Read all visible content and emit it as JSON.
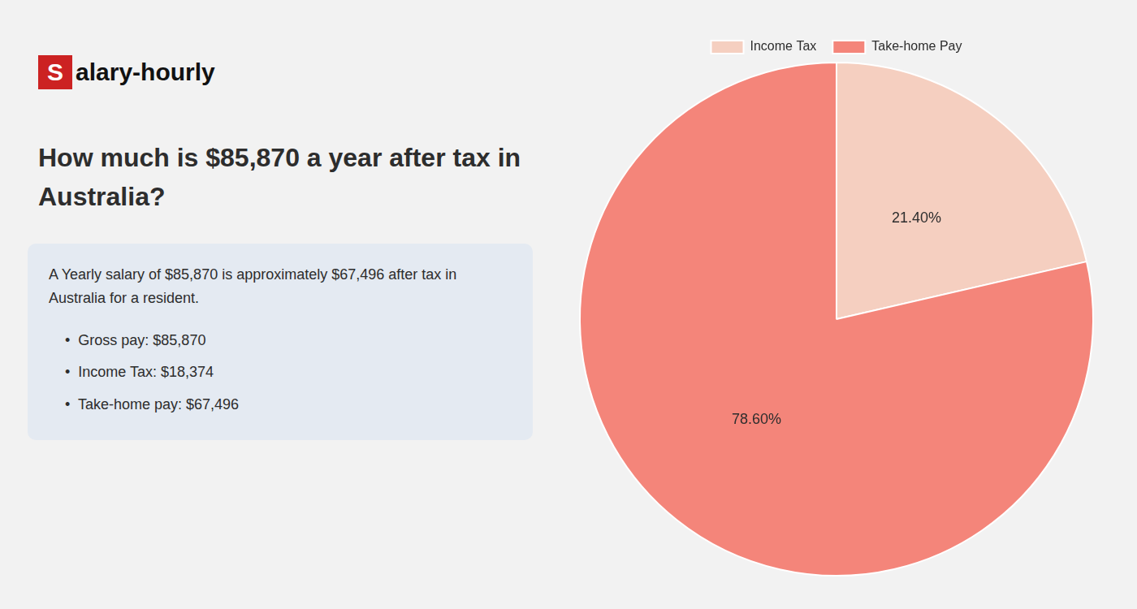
{
  "chart_data": {
    "type": "pie",
    "title": [
      "How much is $85,870 a year after tax in",
      "Australia?"
    ],
    "annotations": [
      "Salary-hourly",
      "A Yearly salary of $85,870 is approximately $67,496 after tax in",
      "Australia for a resident.",
      "•  Gross pay: $85,870",
      "•  Income Tax: $18,374",
      "•  Take-home pay: $67,496"
    ],
    "categories": [
      "Income Tax",
      "Take-home Pay"
    ],
    "values": [
      21.4,
      78.6
    ],
    "value_labels": [
      "21.40%",
      "78.60%"
    ],
    "colors": [
      "#f5cfc0",
      "#f4857a"
    ],
    "data_labels": true,
    "legend": "top"
  }
}
